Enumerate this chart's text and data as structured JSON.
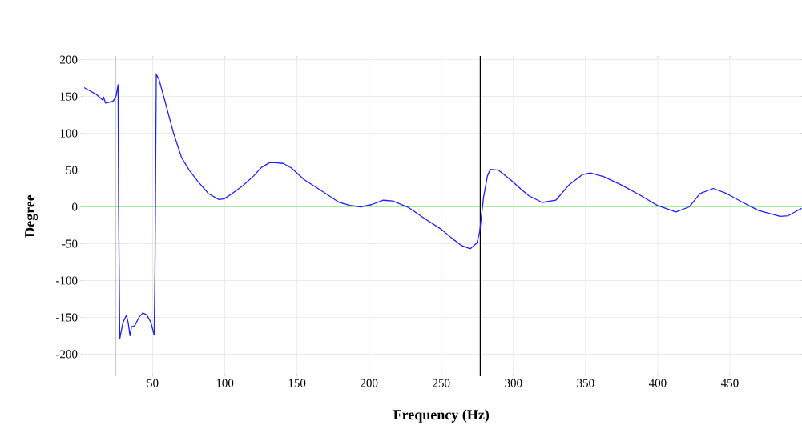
{
  "chart_data": {
    "type": "line",
    "xlabel": "Frequency (Hz)",
    "ylabel": "Degree",
    "xlim": [
      0,
      500
    ],
    "ylim": [
      -230,
      205
    ],
    "xticks": [
      50,
      100,
      150,
      200,
      250,
      300,
      350,
      400,
      450
    ],
    "yticks": [
      -200,
      -150,
      -100,
      -50,
      0,
      50,
      100,
      150,
      200
    ],
    "grid": true,
    "ref_lines": [
      {
        "axis": "y",
        "value": 0,
        "color": "#90ee90"
      },
      {
        "axis": "x",
        "value": 24,
        "color": "#000000"
      },
      {
        "axis": "x",
        "value": 277,
        "color": "#000000"
      }
    ],
    "series": [
      {
        "color": "#1f1fff",
        "x": [
          2.5,
          6.2,
          10.8,
          15.5,
          16,
          17.3,
          20,
          22.8,
          24.7,
          26,
          26.4,
          27.2,
          29.4,
          31.8,
          33,
          34.3,
          35.3,
          37.7,
          40.5,
          43.2,
          46,
          48.8,
          51,
          51.6,
          51.9,
          52.5,
          54.4,
          59,
          64.5,
          70,
          75.6,
          81.2,
          88.6,
          96,
          99.7,
          105,
          112.7,
          120,
          125.6,
          131,
          135,
          140.5,
          146,
          155,
          164.5,
          170,
          179.3,
          186.7,
          194,
          201.6,
          209.8,
          216.4,
          227.5,
          238.6,
          249.7,
          257,
          263.6,
          270,
          274.7,
          276.6,
          279.3,
          282,
          284,
          289.5,
          297.9,
          305.3,
          310.8,
          320,
          329.4,
          338.6,
          348,
          353.4,
          362.7,
          375.6,
          388.6,
          399.7,
          412.6,
          421.9,
          429.3,
          438.6,
          447.8,
          459,
          470,
          484.9,
          490.4,
          496,
          499.7
        ],
        "values": [
          162,
          158,
          153,
          145,
          149,
          141,
          142,
          144,
          151,
          166,
          -1,
          -179,
          -157,
          -147,
          -157,
          -175,
          -163,
          -161,
          -150,
          -144,
          -147,
          -157,
          -174,
          -85,
          -1,
          180,
          173,
          140,
          100,
          67,
          49,
          35,
          18,
          10,
          11,
          18,
          29,
          42,
          54,
          60,
          60,
          59,
          53,
          37,
          25,
          18,
          6,
          2,
          0,
          3,
          9,
          8,
          -1,
          -16,
          -30,
          -42,
          -52,
          -57,
          -49,
          -34,
          13,
          42,
          51,
          50,
          37,
          24,
          15,
          6,
          9,
          30,
          44,
          46,
          41,
          29,
          15,
          2,
          -7,
          0,
          18,
          25,
          18,
          6,
          -5,
          -13,
          -12,
          -6,
          -2
        ]
      }
    ]
  }
}
